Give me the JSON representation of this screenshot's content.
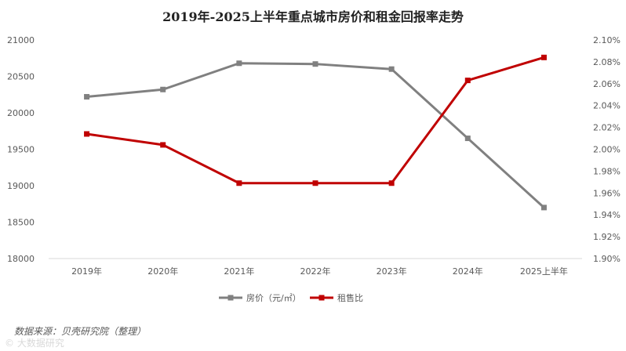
{
  "chart_data": {
    "type": "line",
    "title": "2019年-2025上半年重点城市房价和租金回报率走势",
    "categories": [
      "2019年",
      "2020年",
      "2021年",
      "2022年",
      "2023年",
      "2024年",
      "2025上半年"
    ],
    "series": [
      {
        "name": "房价（元/㎡）",
        "axis": "left",
        "color": "#808080",
        "values": [
          20220,
          20320,
          20680,
          20670,
          20600,
          19650,
          18700
        ]
      },
      {
        "name": "租售比",
        "axis": "right",
        "color": "#C00000",
        "values": [
          2.014,
          2.004,
          1.969,
          1.969,
          1.969,
          2.063,
          2.084
        ]
      }
    ],
    "y_left": {
      "min": 18000,
      "max": 21000,
      "step": 500
    },
    "y_right": {
      "min": 1.9,
      "max": 2.1,
      "step": 0.02,
      "unit": "%"
    },
    "y_left_ticks": [
      "18000",
      "18500",
      "19000",
      "19500",
      "20000",
      "20500",
      "21000"
    ],
    "y_right_ticks": [
      "1.90%",
      "1.92%",
      "1.94%",
      "1.96%",
      "1.98%",
      "2.00%",
      "2.02%",
      "2.04%",
      "2.06%",
      "2.08%",
      "2.10%"
    ],
    "legend_position": "bottom",
    "grid": false
  },
  "source_text": "数据来源：贝壳研究院（整理）",
  "watermark_text": "© 大数据研究"
}
